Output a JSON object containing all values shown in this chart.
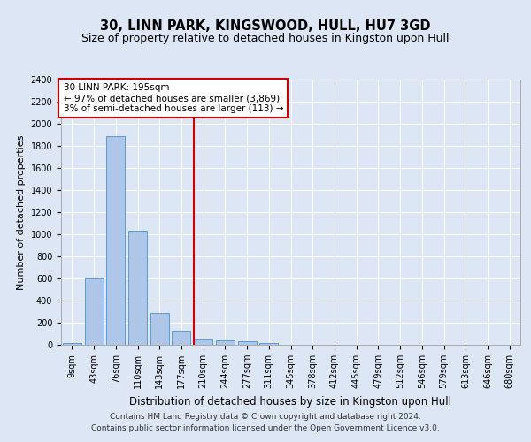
{
  "title": "30, LINN PARK, KINGSWOOD, HULL, HU7 3GD",
  "subtitle": "Size of property relative to detached houses in Kingston upon Hull",
  "xlabel": "Distribution of detached houses by size in Kingston upon Hull",
  "ylabel": "Number of detached properties",
  "footnote1": "Contains HM Land Registry data © Crown copyright and database right 2024.",
  "footnote2": "Contains public sector information licensed under the Open Government Licence v3.0.",
  "annotation_line1": "30 LINN PARK: 195sqm",
  "annotation_line2": "← 97% of detached houses are smaller (3,869)",
  "annotation_line3": "3% of semi-detached houses are larger (113) →",
  "bar_categories": [
    "9sqm",
    "43sqm",
    "76sqm",
    "110sqm",
    "143sqm",
    "177sqm",
    "210sqm",
    "244sqm",
    "277sqm",
    "311sqm",
    "345sqm",
    "378sqm",
    "412sqm",
    "445sqm",
    "479sqm",
    "512sqm",
    "546sqm",
    "579sqm",
    "613sqm",
    "646sqm",
    "680sqm"
  ],
  "bar_values": [
    20,
    600,
    1890,
    1030,
    290,
    120,
    50,
    40,
    30,
    20,
    0,
    0,
    0,
    0,
    0,
    0,
    0,
    0,
    0,
    0,
    0
  ],
  "bar_color": "#aec6e8",
  "bar_edge_color": "#5b9bd5",
  "vline_color": "#cc0000",
  "vline_x": 5.55,
  "ylim": [
    0,
    2400
  ],
  "yticks": [
    0,
    200,
    400,
    600,
    800,
    1000,
    1200,
    1400,
    1600,
    1800,
    2000,
    2200,
    2400
  ],
  "background_color": "#dce6f5",
  "axes_bg_color": "#dce6f5",
  "grid_color": "#ffffff",
  "title_fontsize": 10.5,
  "subtitle_fontsize": 9,
  "xlabel_fontsize": 8.5,
  "ylabel_fontsize": 8,
  "tick_fontsize": 7,
  "annot_fontsize": 7.5,
  "footnote_fontsize": 6.5
}
